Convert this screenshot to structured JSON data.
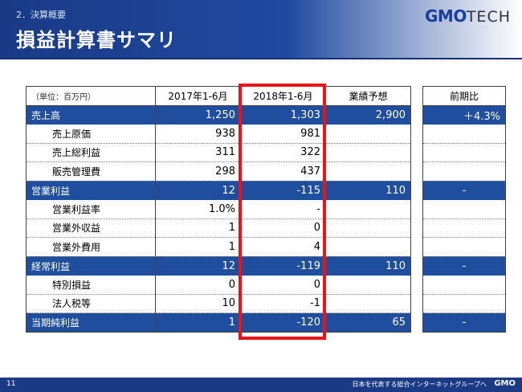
{
  "header": {
    "section": "2．決算概要",
    "title": "損益計算書サマリ",
    "logo_main": "GMO",
    "logo_sub": "TECH"
  },
  "table": {
    "unit_label": "（単位：百万円）",
    "columns": [
      "2017年1-6月",
      "2018年1-6月",
      "業績予想"
    ],
    "yoy_header": "前期比",
    "rows": [
      {
        "label": "売上高",
        "c1": "1,250",
        "c2": "1,303",
        "c3": "2,900",
        "yoy": "＋4.3%"
      },
      {
        "label": "売上原価",
        "c1": "938",
        "c2": "981",
        "c3": "",
        "yoy": ""
      },
      {
        "label": "売上総利益",
        "c1": "311",
        "c2": "322",
        "c3": "",
        "yoy": ""
      },
      {
        "label": "販売管理費",
        "c1": "298",
        "c2": "437",
        "c3": "",
        "yoy": ""
      },
      {
        "label": "営業利益",
        "c1": "12",
        "c2": "-115",
        "c3": "110",
        "yoy": "-"
      },
      {
        "label": "営業利益率",
        "c1": "1.0%",
        "c2": "-",
        "c3": "",
        "yoy": ""
      },
      {
        "label": "営業外収益",
        "c1": "1",
        "c2": "0",
        "c3": "",
        "yoy": ""
      },
      {
        "label": "営業外費用",
        "c1": "1",
        "c2": "4",
        "c3": "",
        "yoy": ""
      },
      {
        "label": "経常利益",
        "c1": "12",
        "c2": "-119",
        "c3": "110",
        "yoy": "-"
      },
      {
        "label": "特別損益",
        "c1": "0",
        "c2": "0",
        "c3": "",
        "yoy": ""
      },
      {
        "label": "法人税等",
        "c1": "10",
        "c2": "-1",
        "c3": "",
        "yoy": ""
      },
      {
        "label": "当期純利益",
        "c1": "1",
        "c2": "-120",
        "c3": "65",
        "yoy": "-"
      }
    ]
  },
  "footer": {
    "page": "11",
    "tagline": "日本を代表する総合インターネットグループへ",
    "logo": "GMO"
  }
}
